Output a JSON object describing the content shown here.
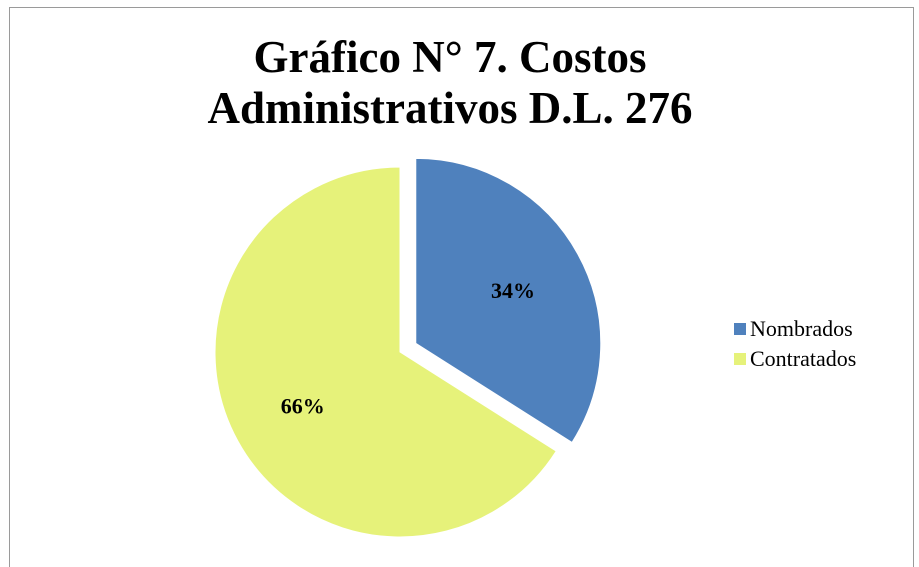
{
  "chart_data": {
    "type": "pie",
    "title": "Gráfico N° 7. Costos Administrativos D.L. 276",
    "categories": [
      "Nombrados",
      "Contratados"
    ],
    "values": [
      34,
      66
    ],
    "data_labels": [
      "34%",
      "66%"
    ],
    "colors": [
      "#4f81bd",
      "#e6f27a"
    ],
    "exploded": [
      "Nombrados"
    ],
    "legend_position": "right"
  }
}
